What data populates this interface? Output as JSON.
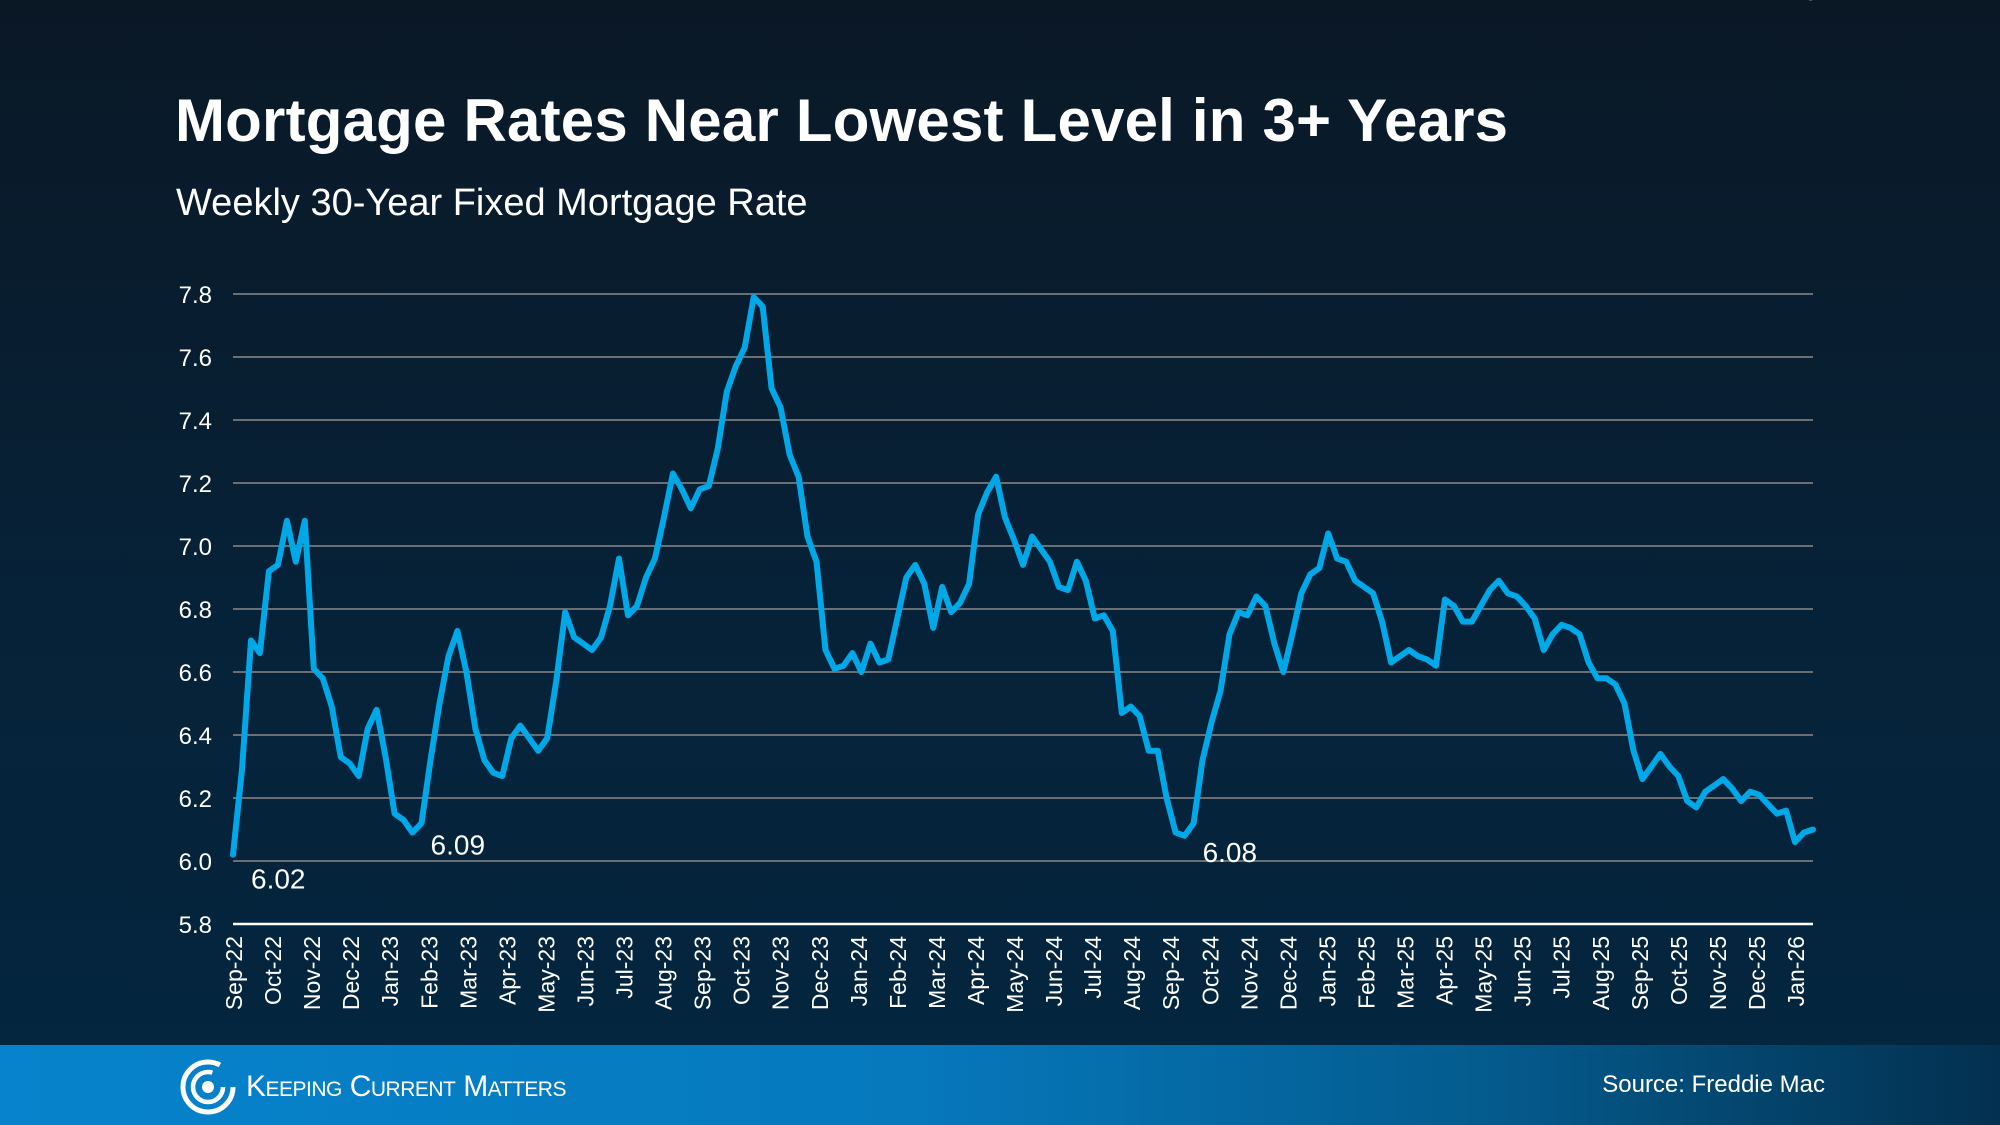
{
  "header": {
    "title": "Mortgage Rates Near Lowest Level in 3+ Years",
    "subtitle": "Weekly 30-Year Fixed Mortgage Rate"
  },
  "footer": {
    "brand": "Keeping Current Matters",
    "source": "Source: Freddie Mac"
  },
  "colors": {
    "line": "#00a8e8",
    "grid": "#6b6f73",
    "axis": "#ffffff"
  },
  "chart_data": {
    "type": "line",
    "title": "Mortgage Rates Near Lowest Level in 3+ Years",
    "subtitle": "Weekly 30-Year Fixed Mortgage Rate",
    "ylim": [
      5.8,
      7.8
    ],
    "yticks": [
      "5.8",
      "6.0",
      "6.2",
      "6.4",
      "6.6",
      "6.8",
      "7.0",
      "7.2",
      "7.4",
      "7.6",
      "7.8"
    ],
    "grid": true,
    "xticks": [
      "Sep-22",
      "Oct-22",
      "Nov-22",
      "Dec-22",
      "Jan-23",
      "Feb-23",
      "Mar-23",
      "Apr-23",
      "May-23",
      "Jun-23",
      "Jul-23",
      "Aug-23",
      "Sep-23",
      "Oct-23",
      "Nov-23",
      "Dec-23",
      "Jan-24",
      "Feb-24",
      "Mar-24",
      "Apr-24",
      "May-24",
      "Jun-24",
      "Jul-24",
      "Aug-24",
      "Sep-24",
      "Oct-24",
      "Nov-24",
      "Dec-24",
      "Jan-25",
      "Feb-25",
      "Mar-25",
      "Apr-25",
      "May-25",
      "Jun-25",
      "Jul-25",
      "Aug-25",
      "Sep-25",
      "Oct-25",
      "Nov-25",
      "Dec-25",
      "Jan-26"
    ],
    "values": [
      6.02,
      6.29,
      6.7,
      6.66,
      6.92,
      6.94,
      7.08,
      6.95,
      7.08,
      6.61,
      6.58,
      6.49,
      6.33,
      6.31,
      6.27,
      6.42,
      6.48,
      6.33,
      6.15,
      6.13,
      6.09,
      6.12,
      6.32,
      6.5,
      6.65,
      6.73,
      6.6,
      6.42,
      6.32,
      6.28,
      6.27,
      6.39,
      6.43,
      6.39,
      6.35,
      6.39,
      6.57,
      6.79,
      6.71,
      6.69,
      6.67,
      6.71,
      6.81,
      6.96,
      6.78,
      6.81,
      6.9,
      6.96,
      7.09,
      7.23,
      7.18,
      7.12,
      7.18,
      7.19,
      7.31,
      7.49,
      7.57,
      7.63,
      7.79,
      7.76,
      7.5,
      7.44,
      7.29,
      7.22,
      7.03,
      6.95,
      6.67,
      6.61,
      6.62,
      6.66,
      6.6,
      6.69,
      6.63,
      6.64,
      6.77,
      6.9,
      6.94,
      6.88,
      6.74,
      6.87,
      6.79,
      6.82,
      6.88,
      7.1,
      7.17,
      7.22,
      7.09,
      7.02,
      6.94,
      7.03,
      6.99,
      6.95,
      6.87,
      6.86,
      6.95,
      6.89,
      6.77,
      6.78,
      6.73,
      6.47,
      6.49,
      6.46,
      6.35,
      6.35,
      6.2,
      6.09,
      6.08,
      6.12,
      6.32,
      6.44,
      6.54,
      6.72,
      6.79,
      6.78,
      6.84,
      6.81,
      6.69,
      6.6,
      6.72,
      6.85,
      6.91,
      6.93,
      7.04,
      6.96,
      6.95,
      6.89,
      6.87,
      6.85,
      6.76,
      6.63,
      6.65,
      6.67,
      6.65,
      6.64,
      6.62,
      6.83,
      6.81,
      6.76,
      6.76,
      6.81,
      6.86,
      6.89,
      6.85,
      6.84,
      6.81,
      6.77,
      6.67,
      6.72,
      6.75,
      6.74,
      6.72,
      6.63,
      6.58,
      6.58,
      6.56,
      6.5,
      6.35,
      6.26,
      6.3,
      6.34,
      6.3,
      6.27,
      6.19,
      6.17,
      6.22,
      6.24,
      6.26,
      6.23,
      6.19,
      6.22,
      6.21,
      6.18,
      6.15,
      6.16,
      6.06,
      6.09,
      6.1
    ],
    "annotations": [
      {
        "label": "6.02",
        "index": 0
      },
      {
        "label": "6.09",
        "index": 20
      },
      {
        "label": "6.08",
        "index": 106
      },
      {
        "label": "6.1",
        "index": 177
      }
    ]
  }
}
